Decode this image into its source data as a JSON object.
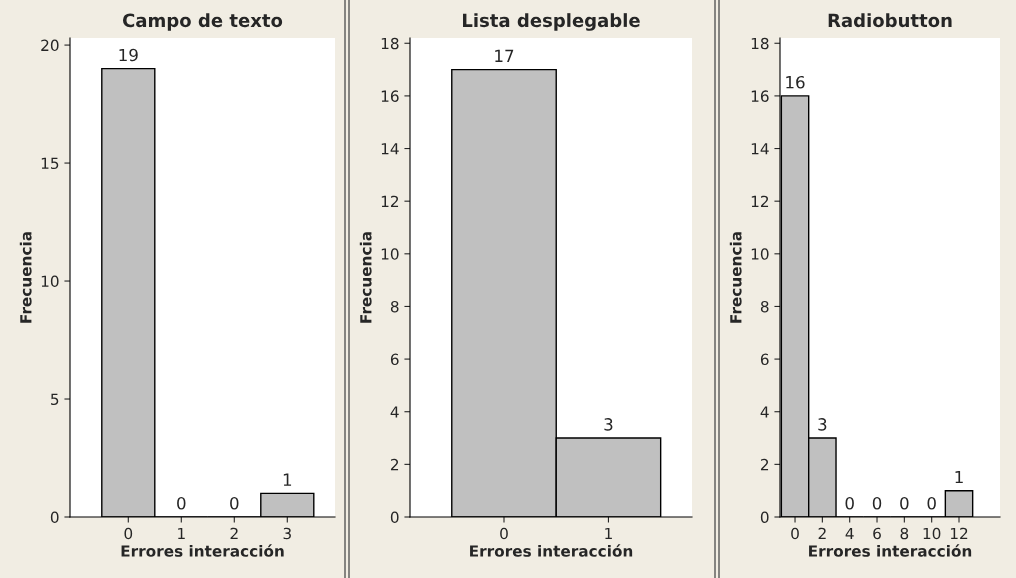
{
  "chart_data": [
    {
      "type": "histogram",
      "title": "Campo de texto",
      "xlabel": "Errores interacción",
      "ylabel": "Frecuencia",
      "bins": [
        -0.5,
        0.5,
        1.5,
        2.5,
        3.5
      ],
      "values": [
        19,
        0,
        0,
        1
      ],
      "color": "#c0c0c0",
      "xlim": [
        -1.1,
        3.9
      ],
      "ylim": [
        0,
        20.3
      ],
      "xticks": [
        0,
        1,
        2,
        3
      ],
      "yticks": [
        0,
        5,
        10,
        15,
        20
      ],
      "data_labels": true,
      "grid": false
    },
    {
      "type": "histogram",
      "title": "Lista desplegable",
      "xlabel": "Errores interacción",
      "ylabel": "Frecuencia",
      "bins": [
        -0.5,
        0.5,
        1.5
      ],
      "values": [
        17,
        3
      ],
      "color": "#c0c0c0",
      "xlim": [
        -0.9,
        1.8
      ],
      "ylim": [
        0,
        18.2
      ],
      "xticks": [
        0,
        1
      ],
      "yticks": [
        0,
        2,
        4,
        6,
        8,
        10,
        12,
        14,
        16,
        18
      ],
      "data_labels": true,
      "grid": false
    },
    {
      "type": "histogram",
      "title": "Radiobutton",
      "xlabel": "Errores interacción",
      "ylabel": "Frecuencia",
      "bins": [
        -1,
        1,
        3,
        5,
        7,
        9,
        11,
        13
      ],
      "values": [
        16,
        3,
        0,
        0,
        0,
        0,
        1
      ],
      "color": "#c0c0c0",
      "xlim": [
        -1.1,
        15
      ],
      "ylim": [
        0,
        18.2
      ],
      "xticks": [
        0,
        2,
        4,
        6,
        8,
        10,
        12
      ],
      "yticks": [
        0,
        2,
        4,
        6,
        8,
        10,
        12,
        14,
        16,
        18
      ],
      "data_labels": true,
      "grid": false
    }
  ]
}
